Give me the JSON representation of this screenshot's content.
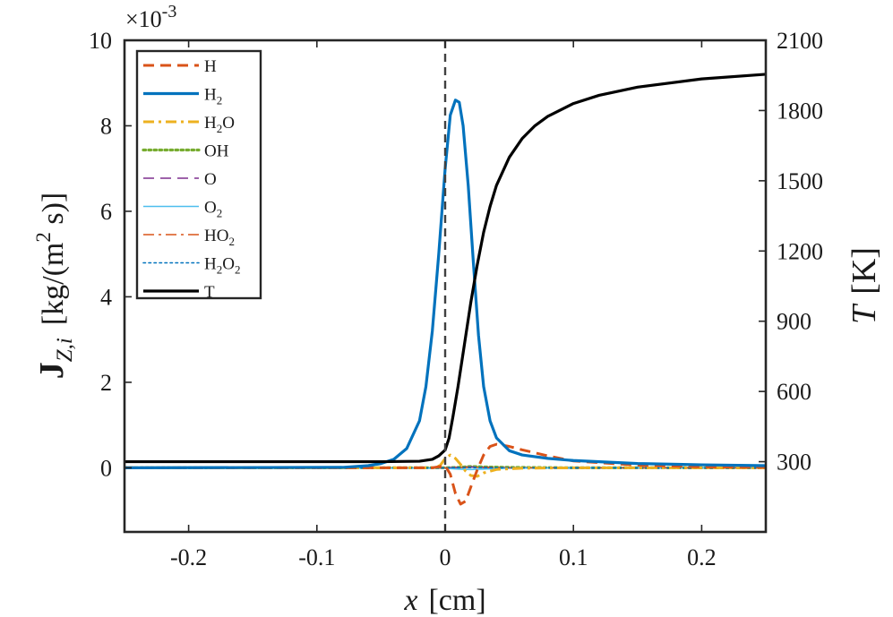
{
  "chart_data": {
    "type": "line",
    "x_axis": {
      "label_var": "x",
      "label_unit": "[cm]",
      "lim": [
        -0.25,
        0.25
      ],
      "ticks": [
        -0.2,
        -0.1,
        0,
        0.1,
        0.2
      ],
      "tick_labels": [
        "-0.2",
        "-0.1",
        "0",
        "0.1",
        "0.2"
      ]
    },
    "y_left": {
      "label_bold": "J",
      "label_sub": "Z,i",
      "label_unit": "[kg/(m",
      "label_sup": "2",
      "label_unit_end": " s)]",
      "lim": [
        -1.5,
        10
      ],
      "ticks": [
        0,
        2,
        4,
        6,
        8,
        10
      ],
      "tick_labels": [
        "0",
        "2",
        "4",
        "6",
        "8",
        "10"
      ],
      "multiplier": "×10",
      "multiplier_exp": "-3"
    },
    "y_right": {
      "label_var": "T",
      "label_unit": "[K]",
      "lim": [
        0,
        2100
      ],
      "ticks": [
        300,
        600,
        900,
        1200,
        1500,
        1800,
        2100
      ],
      "tick_labels": [
        "300",
        "600",
        "900",
        "1200",
        "1500",
        "1800",
        "2100"
      ]
    },
    "vline_x": 0,
    "legend": {
      "placement": "top-left",
      "entries": [
        {
          "base": "H",
          "sub": ""
        },
        {
          "base": "H",
          "sub": "2"
        },
        {
          "base": "H",
          "sub": "2",
          "tail": "O"
        },
        {
          "base": "OH",
          "sub": ""
        },
        {
          "base": "O",
          "sub": ""
        },
        {
          "base": "O",
          "sub": "2"
        },
        {
          "base": "HO",
          "sub": "2"
        },
        {
          "base": "H",
          "sub": "2",
          "tail": "O",
          "sub2": "2"
        },
        {
          "base": "T",
          "sub": ""
        }
      ]
    },
    "series": [
      {
        "name": "H",
        "axis": "left",
        "color": "#D95319",
        "style": "dash",
        "width": 3,
        "x": [
          -0.25,
          -0.01,
          -0.004,
          0,
          0.004,
          0.008,
          0.012,
          0.016,
          0.02,
          0.025,
          0.03,
          0.035,
          0.04,
          0.05,
          0.06,
          0.08,
          0.1,
          0.15,
          0.2,
          0.25
        ],
        "y": [
          0,
          0,
          0.03,
          0.05,
          -0.15,
          -0.6,
          -0.85,
          -0.78,
          -0.45,
          -0.05,
          0.3,
          0.5,
          0.55,
          0.5,
          0.42,
          0.28,
          0.16,
          0.06,
          0.02,
          0.01
        ]
      },
      {
        "name": "H2",
        "axis": "left",
        "color": "#0072BD",
        "style": "solid",
        "width": 3.2,
        "x": [
          -0.25,
          -0.08,
          -0.06,
          -0.05,
          -0.04,
          -0.03,
          -0.02,
          -0.015,
          -0.01,
          -0.005,
          0,
          0.004,
          0.008,
          0.011,
          0.014,
          0.018,
          0.022,
          0.026,
          0.03,
          0.035,
          0.04,
          0.05,
          0.06,
          0.08,
          0.1,
          0.15,
          0.2,
          0.25
        ],
        "y": [
          0,
          0.01,
          0.05,
          0.1,
          0.2,
          0.45,
          1.1,
          1.9,
          3.2,
          5.0,
          7.0,
          8.25,
          8.6,
          8.55,
          8.0,
          6.6,
          4.8,
          3.1,
          1.9,
          1.1,
          0.7,
          0.4,
          0.3,
          0.22,
          0.17,
          0.1,
          0.07,
          0.05
        ]
      },
      {
        "name": "H2O",
        "axis": "left",
        "color": "#EDB120",
        "style": "dashdot",
        "width": 3,
        "x": [
          -0.25,
          -0.01,
          -0.004,
          0,
          0.004,
          0.008,
          0.012,
          0.016,
          0.02,
          0.025,
          0.03,
          0.04,
          0.06,
          0.1,
          0.25
        ],
        "y": [
          0,
          0,
          0.05,
          0.22,
          0.3,
          0.22,
          0.08,
          -0.08,
          -0.18,
          -0.2,
          -0.12,
          -0.04,
          -0.01,
          0,
          0
        ]
      },
      {
        "name": "OH",
        "axis": "left",
        "color": "#77AC30",
        "style": "dot",
        "width": 3.2,
        "x": [
          -0.25,
          0,
          0.01,
          0.02,
          0.03,
          0.05,
          0.1,
          0.25
        ],
        "y": [
          0,
          0,
          0.01,
          0.03,
          0.02,
          0.01,
          0,
          0
        ]
      },
      {
        "name": "O",
        "axis": "left",
        "color": "#7E2F8E",
        "style": "dash",
        "width": 1.6,
        "x": [
          -0.25,
          0,
          0.01,
          0.02,
          0.03,
          0.05,
          0.1,
          0.25
        ],
        "y": [
          0,
          0,
          0.01,
          0.02,
          0.01,
          0,
          0,
          0
        ]
      },
      {
        "name": "O2",
        "axis": "left",
        "color": "#4DBEEE",
        "style": "solid",
        "width": 1.6,
        "x": [
          -0.25,
          0,
          0.01,
          0.02,
          0.03,
          0.05,
          0.1,
          0.25
        ],
        "y": [
          0,
          -0.01,
          -0.03,
          -0.04,
          -0.03,
          -0.01,
          0,
          0
        ]
      },
      {
        "name": "HO2",
        "axis": "left",
        "color": "#D95319",
        "style": "dashdot",
        "width": 1.6,
        "x": [
          -0.25,
          0,
          0.01,
          0.02,
          0.05,
          0.25
        ],
        "y": [
          0,
          0,
          0.01,
          0.01,
          0,
          0
        ]
      },
      {
        "name": "H2O2",
        "axis": "left",
        "color": "#0072BD",
        "style": "dot",
        "width": 1.6,
        "x": [
          -0.25,
          0,
          0.01,
          0.02,
          0.05,
          0.25
        ],
        "y": [
          0,
          0,
          0.005,
          0.005,
          0,
          0
        ]
      },
      {
        "name": "T",
        "axis": "right",
        "color": "#000000",
        "style": "solid",
        "width": 3.2,
        "x": [
          -0.25,
          -0.05,
          -0.02,
          -0.01,
          -0.005,
          0,
          0.003,
          0.006,
          0.01,
          0.015,
          0.02,
          0.025,
          0.03,
          0.035,
          0.04,
          0.05,
          0.06,
          0.07,
          0.08,
          0.1,
          0.12,
          0.15,
          0.2,
          0.25
        ],
        "y": [
          300,
          300,
          302,
          310,
          325,
          350,
          400,
          490,
          620,
          800,
          980,
          1140,
          1280,
          1390,
          1480,
          1600,
          1680,
          1735,
          1775,
          1830,
          1865,
          1900,
          1935,
          1955
        ]
      }
    ]
  }
}
